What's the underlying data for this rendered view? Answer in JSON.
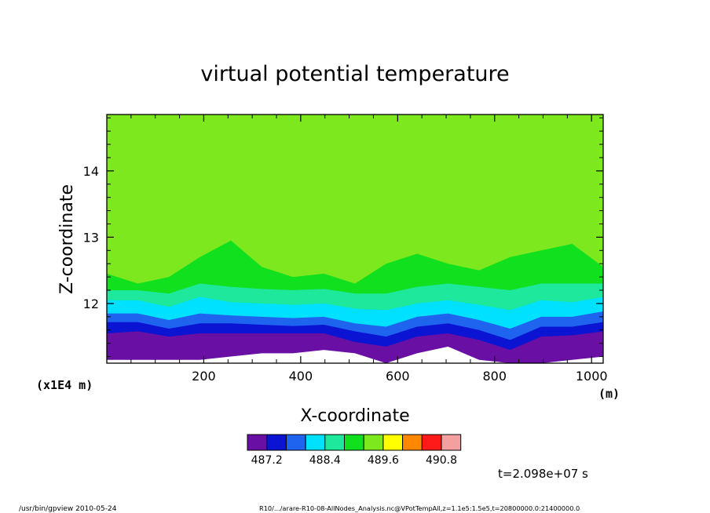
{
  "chart_data": {
    "type": "heatmap",
    "title": "virtual potential temperature",
    "xlabel": "X-coordinate",
    "ylabel": "Z-coordinate",
    "x_units": "(m)",
    "y_units": "(x1E4 m)",
    "xlim": [
      0,
      1024
    ],
    "ylim": [
      11.1,
      14.85
    ],
    "x_ticks": [
      200,
      400,
      600,
      800,
      1000
    ],
    "y_ticks": [
      12,
      13,
      14
    ],
    "x_tick_labels": [
      "200",
      "400",
      "600",
      "800",
      "1000"
    ],
    "y_tick_labels": [
      "12",
      "13",
      "14"
    ],
    "colorbar": {
      "colors": [
        "#6a0fa3",
        "#0a14d2",
        "#1e64ee",
        "#00e0ff",
        "#1ee89c",
        "#10e01e",
        "#7ee81e",
        "#ffff00",
        "#ff8800",
        "#ff1a1a",
        "#f4a0a0"
      ],
      "labels": [
        "487.2",
        "488.4",
        "489.6",
        "490.8"
      ]
    },
    "band_levels": {
      "x": [
        0,
        64,
        128,
        192,
        256,
        320,
        384,
        448,
        512,
        576,
        640,
        704,
        768,
        832,
        896,
        960,
        1024
      ],
      "purple_bottom": [
        11.15,
        11.15,
        11.15,
        11.15,
        11.2,
        11.25,
        11.25,
        11.3,
        11.25,
        11.1,
        11.25,
        11.35,
        11.15,
        11.1,
        11.1,
        11.15,
        11.2
      ],
      "purple_top": [
        11.55,
        11.58,
        11.5,
        11.55,
        11.55,
        11.55,
        11.55,
        11.55,
        11.42,
        11.35,
        11.5,
        11.55,
        11.45,
        11.3,
        11.5,
        11.52,
        11.58
      ],
      "blue_top": [
        11.72,
        11.72,
        11.62,
        11.7,
        11.7,
        11.68,
        11.66,
        11.68,
        11.58,
        11.5,
        11.65,
        11.7,
        11.6,
        11.45,
        11.65,
        11.65,
        11.72
      ],
      "mid_blue_top": [
        11.85,
        11.85,
        11.75,
        11.85,
        11.82,
        11.8,
        11.78,
        11.8,
        11.7,
        11.65,
        11.8,
        11.85,
        11.75,
        11.62,
        11.8,
        11.8,
        11.88
      ],
      "cyan_top": [
        12.05,
        12.05,
        11.95,
        12.1,
        12.02,
        12.0,
        11.98,
        12.0,
        11.92,
        11.9,
        12.0,
        12.05,
        11.98,
        11.9,
        12.05,
        12.02,
        12.1
      ],
      "teal_top": [
        12.2,
        12.2,
        12.15,
        12.3,
        12.25,
        12.22,
        12.2,
        12.22,
        12.15,
        12.15,
        12.25,
        12.3,
        12.25,
        12.2,
        12.3,
        12.3,
        12.3
      ],
      "green_top": [
        12.45,
        12.3,
        12.4,
        12.7,
        12.95,
        12.55,
        12.4,
        12.45,
        12.3,
        12.6,
        12.75,
        12.6,
        12.5,
        12.7,
        12.8,
        12.9,
        12.55
      ],
      "background_color": "#7ee81e"
    }
  },
  "time_label": "t=2.098e+07 s",
  "footer": {
    "left": "/usr/bin/gpview   2010-05-24",
    "right": "R10/.../arare-R10-08-AllNodes_Analysis.nc@VPotTempAll,z=1.1e5:1.5e5,t=20800000.0:21400000.0"
  }
}
